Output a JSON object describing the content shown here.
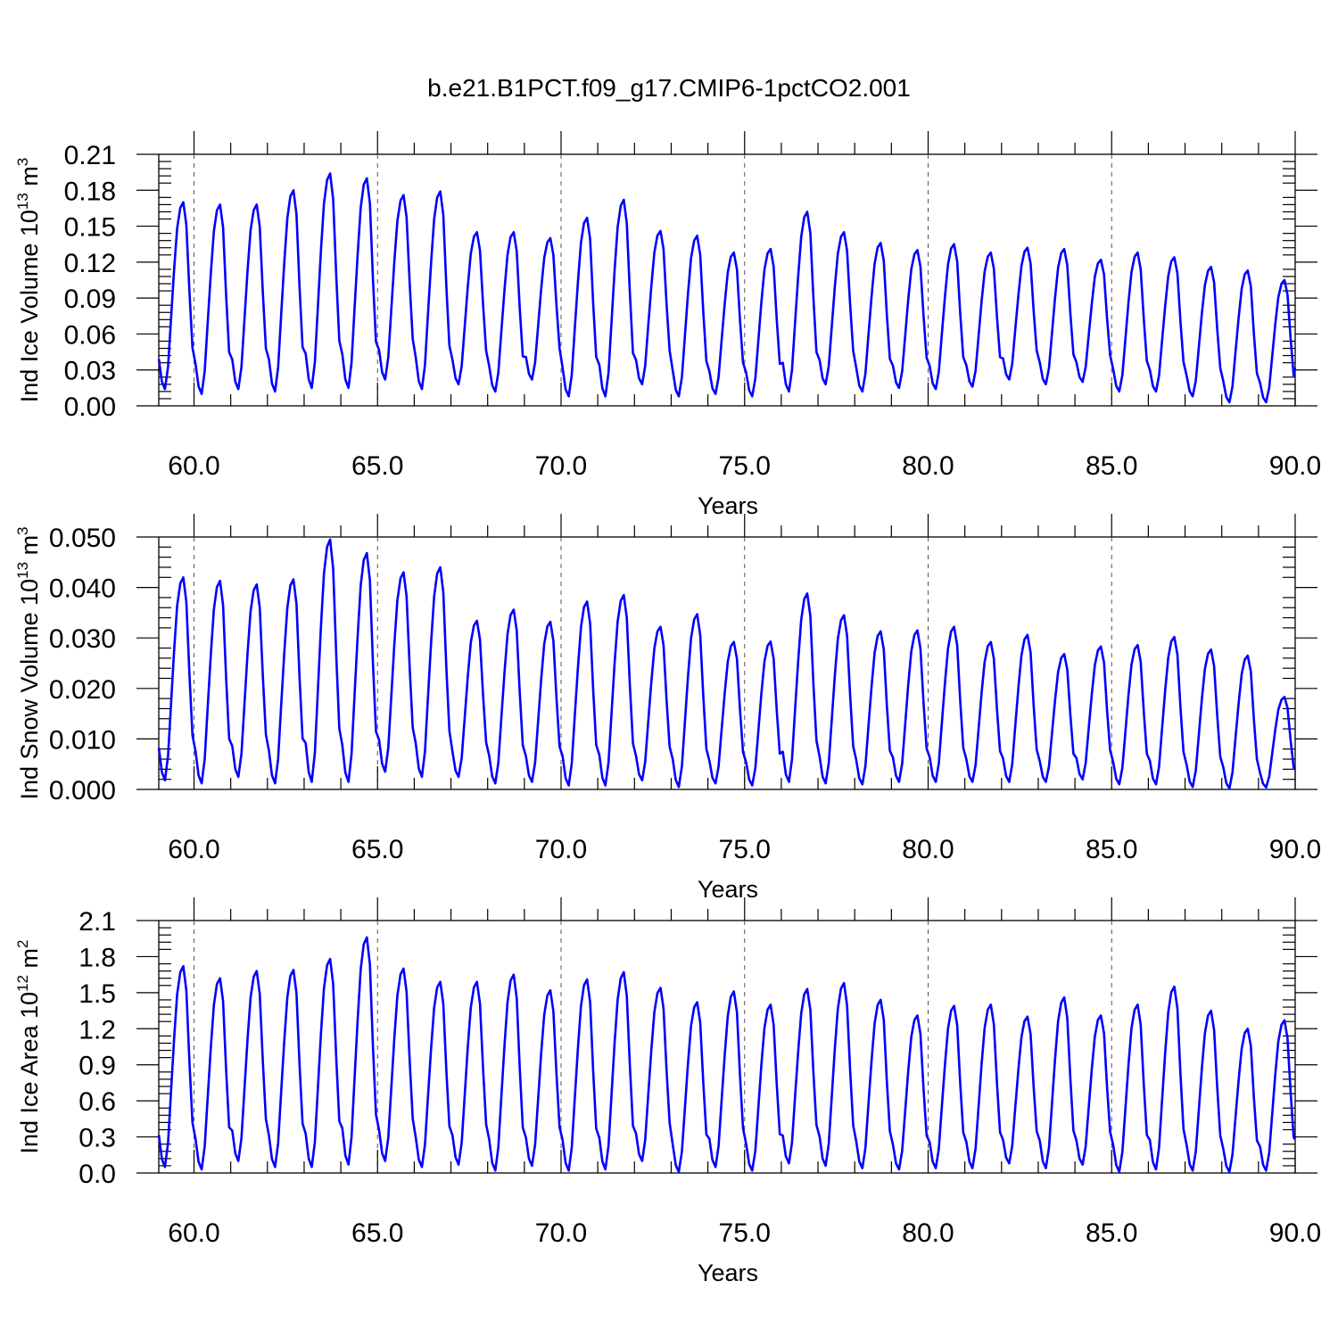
{
  "title": "b.e21.B1PCT.f09_g17.CMIP6-1pctCO2.001",
  "colors": {
    "series": "#0000ff",
    "frame": "#000000",
    "grid": "#555555"
  },
  "chart_data": [
    {
      "type": "line",
      "id": "ice-volume",
      "xlabel": "Years",
      "ylabel_main": "Ind Ice Volume 10",
      "ylabel_exp": "13",
      "ylabel_unit": " m",
      "ylabel_unit_exp": "3",
      "xlim": [
        59.04,
        90.0
      ],
      "ylim": [
        0.0,
        0.21
      ],
      "xticks": [
        60,
        65,
        70,
        75,
        80,
        85,
        90
      ],
      "xtick_labels": [
        "60.0",
        "65.0",
        "70.0",
        "75.0",
        "80.0",
        "85.0",
        "90.0"
      ],
      "yticks": [
        0,
        0.03,
        0.06,
        0.09,
        0.12,
        0.15,
        0.18,
        0.21
      ],
      "ytick_labels": [
        "0.00",
        "0.03",
        "0.06",
        "0.09",
        "0.12",
        "0.15",
        "0.18",
        "0.21"
      ],
      "grid": "dashed vertical lines at x ticks",
      "series": [
        {
          "color": "#0000ff",
          "start_year": 59,
          "peaks": [
            0.17,
            0.168,
            0.168,
            0.18,
            0.194,
            0.19,
            0.176,
            0.179,
            0.145,
            0.145,
            0.14,
            0.157,
            0.172,
            0.146,
            0.142,
            0.128,
            0.131,
            0.162,
            0.145,
            0.136,
            0.13,
            0.135,
            0.128,
            0.132,
            0.131,
            0.122,
            0.128,
            0.124,
            0.116,
            0.113,
            0.105
          ],
          "troughs": [
            0.014,
            0.01,
            0.014,
            0.012,
            0.015,
            0.015,
            0.022,
            0.014,
            0.018,
            0.012,
            0.022,
            0.008,
            0.008,
            0.018,
            0.008,
            0.01,
            0.008,
            0.012,
            0.018,
            0.012,
            0.015,
            0.014,
            0.016,
            0.022,
            0.018,
            0.02,
            0.012,
            0.012,
            0.008,
            0.003,
            0.003
          ],
          "final_value": 0.032
        }
      ]
    },
    {
      "type": "line",
      "id": "snow-volume",
      "xlabel": "Years",
      "ylabel_main": "Ind Snow Volume 10",
      "ylabel_exp": "13",
      "ylabel_unit": " m",
      "ylabel_unit_exp": "3",
      "xlim": [
        59.04,
        90.0
      ],
      "ylim": [
        0.0,
        0.05
      ],
      "xticks": [
        60,
        65,
        70,
        75,
        80,
        85,
        90
      ],
      "xtick_labels": [
        "60.0",
        "65.0",
        "70.0",
        "75.0",
        "80.0",
        "85.0",
        "90.0"
      ],
      "yticks": [
        0,
        0.01,
        0.02,
        0.03,
        0.04,
        0.05
      ],
      "ytick_labels": [
        "0.000",
        "0.010",
        "0.020",
        "0.030",
        "0.040",
        "0.050"
      ],
      "grid": "dashed vertical lines at x ticks",
      "series": [
        {
          "color": "#0000ff",
          "start_year": 59,
          "peaks": [
            0.042,
            0.0413,
            0.0406,
            0.0416,
            0.0495,
            0.0468,
            0.043,
            0.044,
            0.0334,
            0.0356,
            0.0332,
            0.0372,
            0.0385,
            0.0322,
            0.0347,
            0.0292,
            0.0293,
            0.0388,
            0.0345,
            0.0313,
            0.0315,
            0.0322,
            0.0292,
            0.0306,
            0.0268,
            0.0283,
            0.0286,
            0.0302,
            0.0277,
            0.0265,
            0.0183
          ],
          "troughs": [
            0.0018,
            0.0012,
            0.0025,
            0.0012,
            0.0015,
            0.0015,
            0.0035,
            0.0025,
            0.0025,
            0.0012,
            0.0015,
            0.0008,
            0.0008,
            0.0018,
            0.0005,
            0.0012,
            0.0008,
            0.0015,
            0.0012,
            0.001,
            0.0015,
            0.0015,
            0.0015,
            0.0015,
            0.0015,
            0.002,
            0.001,
            0.001,
            0.0005,
            0.0002,
            0.0004
          ],
          "final_value": 0.004
        }
      ]
    },
    {
      "type": "line",
      "id": "ice-area",
      "xlabel": "Years",
      "ylabel_main": "Ind Ice Area 10",
      "ylabel_exp": "12",
      "ylabel_unit": " m",
      "ylabel_unit_exp": "2",
      "xlim": [
        59.04,
        90.0
      ],
      "ylim": [
        0.0,
        2.1
      ],
      "xticks": [
        60,
        65,
        70,
        75,
        80,
        85,
        90
      ],
      "xtick_labels": [
        "60.0",
        "65.0",
        "70.0",
        "75.0",
        "80.0",
        "85.0",
        "90.0"
      ],
      "yticks": [
        0,
        0.3,
        0.6,
        0.9,
        1.2,
        1.5,
        1.8,
        2.1
      ],
      "ytick_labels": [
        "0.0",
        "0.3",
        "0.6",
        "0.9",
        "1.2",
        "1.5",
        "1.8",
        "2.1"
      ],
      "grid": "dashed vertical lines at x ticks",
      "series": [
        {
          "color": "#0000ff",
          "start_year": 59,
          "peaks": [
            1.72,
            1.62,
            1.68,
            1.69,
            1.78,
            1.96,
            1.7,
            1.59,
            1.59,
            1.65,
            1.52,
            1.61,
            1.67,
            1.54,
            1.42,
            1.51,
            1.4,
            1.53,
            1.58,
            1.44,
            1.31,
            1.39,
            1.4,
            1.3,
            1.46,
            1.31,
            1.4,
            1.55,
            1.35,
            1.2,
            1.27
          ],
          "troughs": [
            0.05,
            0.03,
            0.1,
            0.05,
            0.05,
            0.07,
            0.1,
            0.05,
            0.07,
            0.02,
            0.06,
            0.02,
            0.03,
            0.1,
            0.01,
            0.05,
            0.02,
            0.08,
            0.06,
            0.04,
            0.03,
            0.04,
            0.04,
            0.08,
            0.04,
            0.07,
            0.01,
            0.03,
            0.02,
            0.01,
            0.02
          ],
          "final_value": 0.28
        }
      ]
    }
  ]
}
